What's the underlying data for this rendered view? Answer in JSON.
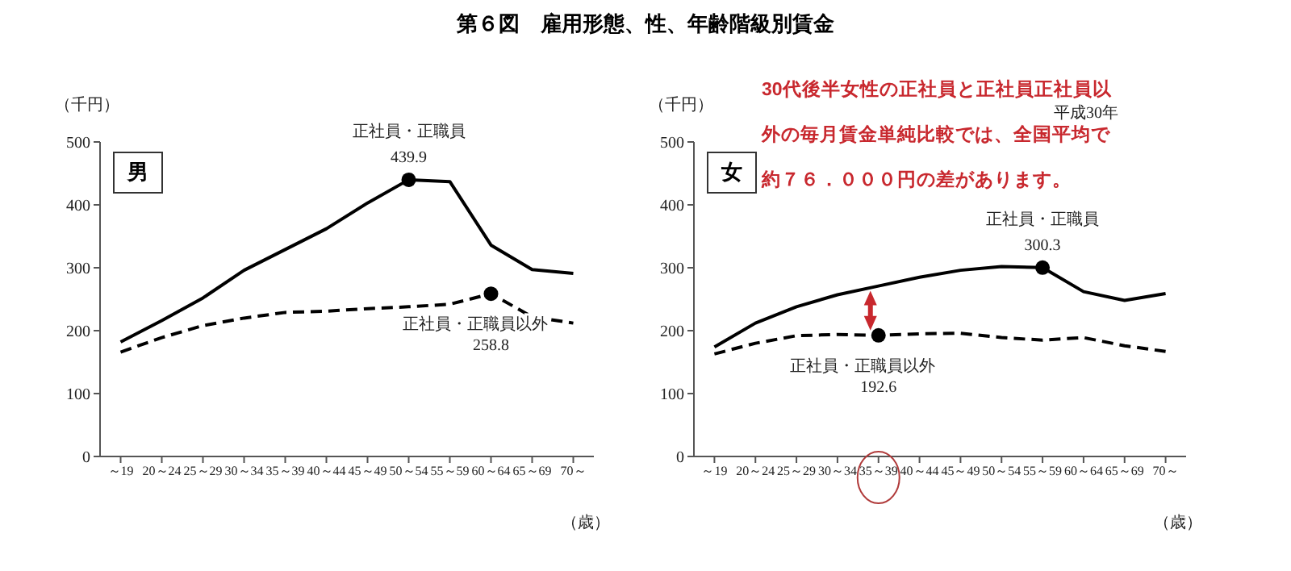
{
  "chart_data": [
    {
      "type": "line",
      "title": "第６図　雇用形態、性、年齢階級別賃金",
      "subtitle": "男",
      "ylabel": "（千円）",
      "xlabel": "（歳）",
      "categories": [
        "～19",
        "20～24",
        "25～29",
        "30～34",
        "35～39",
        "40～44",
        "45～49",
        "50～54",
        "55～59",
        "60～64",
        "65～69",
        "70～"
      ],
      "series": [
        {
          "name": "正社員・正職員",
          "color": "#000000",
          "line_style": "solid",
          "values": [
            182,
            216,
            252,
            296,
            329,
            362,
            403,
            439.9,
            437,
            336,
            297,
            291
          ],
          "value_labels": [
            null,
            null,
            null,
            null,
            null,
            null,
            null,
            "439.9",
            null,
            null,
            null,
            null
          ]
        },
        {
          "name": "正社員・正職員以外",
          "color": "#000000",
          "line_style": "dashed",
          "values": [
            166,
            189,
            208,
            220,
            229,
            231,
            235,
            238,
            242,
            258.8,
            222,
            212
          ],
          "value_labels": [
            null,
            null,
            null,
            null,
            null,
            null,
            null,
            null,
            null,
            "258.8",
            null,
            null
          ]
        }
      ],
      "ylim": [
        0,
        500
      ],
      "yticks": [
        0,
        100,
        200,
        300,
        400,
        500
      ],
      "grid": false,
      "legend": false
    },
    {
      "type": "line",
      "subtitle": "女",
      "ylabel": "（千円）",
      "xlabel": "（歳）",
      "categories": [
        "～19",
        "20～24",
        "25～29",
        "30～34",
        "35～39",
        "40～44",
        "45～49",
        "50～54",
        "55～59",
        "60～64",
        "65～69",
        "70～"
      ],
      "series": [
        {
          "name": "正社員・正職員",
          "color": "#000000",
          "line_style": "solid",
          "values": [
            174,
            212,
            238,
            257,
            271,
            285,
            296,
            302,
            300.3,
            262,
            248,
            259
          ],
          "value_labels": [
            null,
            null,
            null,
            null,
            null,
            null,
            null,
            null,
            "300.3",
            null,
            null,
            null
          ]
        },
        {
          "name": "正社員・正職員以外",
          "color": "#000000",
          "line_style": "dashed",
          "values": [
            163,
            180,
            192,
            194,
            192.6,
            195,
            196,
            189,
            185,
            189,
            176,
            167
          ],
          "value_labels": [
            null,
            null,
            null,
            null,
            "192.6",
            null,
            null,
            null,
            null,
            null,
            null,
            null
          ]
        }
      ],
      "ylim": [
        0,
        500
      ],
      "yticks": [
        0,
        100,
        200,
        300,
        400,
        500
      ],
      "grid": false,
      "legend": false,
      "annotations": [
        "30代後半女性の正社員と正社員正社員以",
        "外の毎月賃金単純比較では、全国平均で",
        "約７６．０００円の差があります。",
        "平成30年"
      ]
    }
  ]
}
